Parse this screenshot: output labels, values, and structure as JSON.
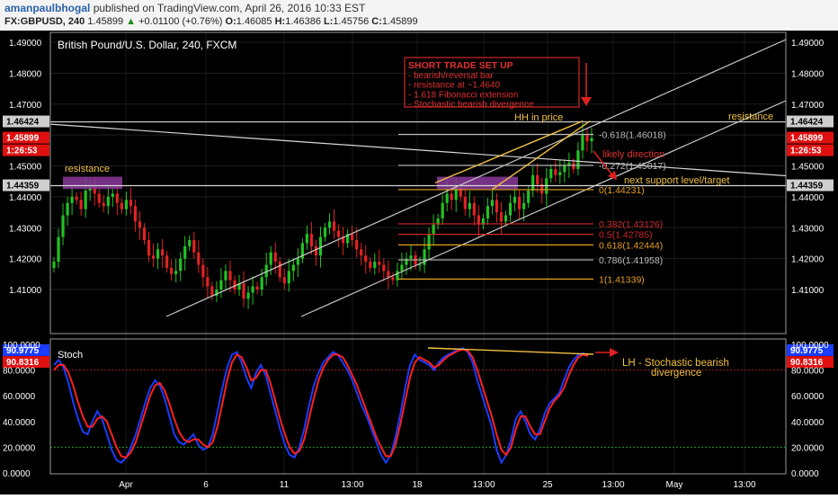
{
  "header": {
    "author": "amanpaulbhogal",
    "published_text": "published on TradingView.com, April 26, 2016 10:33 EST",
    "symbol": "FX:GBPUSD, 240",
    "last": "1.45899",
    "change_arrow": "▲",
    "change": "+0.01100 (+0.76%)",
    "o_label": "O:",
    "o": "1.46085",
    "h_label": "H:",
    "h": "1.46386",
    "l_label": "L:",
    "l": "1.45756",
    "c_label": "C:",
    "c": "1.45899"
  },
  "colors": {
    "background": "#000000",
    "panel_border": "#9a9a9a",
    "bull": "#22c322",
    "bear": "#e22222",
    "fib_gray": "#bbbbbb",
    "fib_red": "#d02828",
    "fib_orange": "#e8a020",
    "annotation_yellow": "#f0c040",
    "resistance_zone": "#8a3a9a",
    "stoch_k": "#1a3cff",
    "stoch_d": "#ff2020"
  },
  "chart_data": [
    {
      "type": "candlestick",
      "title": "British Pound/U.S. Dollar, 240, FXCM",
      "ylim": [
        1.4,
        1.4914
      ],
      "y_ticks": [
        "1.49000",
        "1.48000",
        "1.47000",
        "1.46000",
        "1.45000",
        "1.44000",
        "1.43000",
        "1.42000",
        "1.41000"
      ],
      "x_ticks": [
        "Apr",
        "6",
        "11",
        "13:00",
        "18",
        "13:00",
        "25",
        "13:00",
        "May",
        "13:00"
      ],
      "price_tags": [
        {
          "value": "1.46424",
          "style": "gray"
        },
        {
          "value": "1.45899",
          "style": "red"
        },
        {
          "value": "1:26:53",
          "style": "red"
        },
        {
          "value": "1.44359",
          "style": "gray"
        }
      ],
      "fibonacci_levels": [
        {
          "label": "-0.618(1.46018)",
          "value": 1.46018,
          "color": "gray"
        },
        {
          "label": "-0.272(1.45017)",
          "value": 1.45017,
          "color": "gray"
        },
        {
          "label": "0(1.44231)",
          "value": 1.44231,
          "color": "orange"
        },
        {
          "label": "0.382(1.43126)",
          "value": 1.43126,
          "color": "red"
        },
        {
          "label": "0.5(1.42785)",
          "value": 1.42785,
          "color": "red"
        },
        {
          "label": "0.618(1.42444)",
          "value": 1.42444,
          "color": "orange"
        },
        {
          "label": "0.786(1.41958)",
          "value": 1.41958,
          "color": "gray"
        },
        {
          "label": "1(1.41339)",
          "value": 1.41339,
          "color": "orange"
        }
      ],
      "horizontal_lines": [
        {
          "name": "resistance",
          "value": 1.46424
        },
        {
          "name": "support",
          "value": 1.44359
        }
      ],
      "annotations": {
        "short_setup_lines": [
          "SHORT TRADE SET UP",
          "- bearish/reversal bar",
          "- resistance at ~1.4640",
          "- 1.618 Fibonacci extension",
          "- Stochastic bearish divergence"
        ],
        "hh_in_price": "HH in price",
        "resistance_right": "resistance",
        "resistance_left": "resistance",
        "likely_direction": "likely direction",
        "next_support": "next support level/target"
      },
      "close_series": [
        1.419,
        1.427,
        1.434,
        1.438,
        1.44,
        1.439,
        1.436,
        1.442,
        1.443,
        1.441,
        1.438,
        1.437,
        1.44,
        1.441,
        1.438,
        1.436,
        1.439,
        1.437,
        1.432,
        1.43,
        1.426,
        1.421,
        1.42,
        1.423,
        1.421,
        1.417,
        1.415,
        1.416,
        1.42,
        1.424,
        1.426,
        1.422,
        1.418,
        1.414,
        1.411,
        1.408,
        1.41,
        1.413,
        1.416,
        1.413,
        1.41,
        1.412,
        1.407,
        1.409,
        1.411,
        1.41,
        1.414,
        1.418,
        1.422,
        1.419,
        1.414,
        1.412,
        1.416,
        1.418,
        1.42,
        1.425,
        1.428,
        1.424,
        1.421,
        1.427,
        1.43,
        1.432,
        1.429,
        1.427,
        1.425,
        1.428,
        1.426,
        1.423,
        1.421,
        1.419,
        1.417,
        1.419,
        1.418,
        1.416,
        1.414,
        1.413,
        1.416,
        1.418,
        1.42,
        1.421,
        1.418,
        1.418,
        1.423,
        1.428,
        1.431,
        1.433,
        1.438,
        1.441,
        1.439,
        1.443,
        1.44,
        1.436,
        1.438,
        1.434,
        1.431,
        1.433,
        1.437,
        1.439,
        1.435,
        1.432,
        1.434,
        1.438,
        1.44,
        1.436,
        1.438,
        1.442,
        1.447,
        1.444,
        1.441,
        1.446,
        1.449,
        1.447,
        1.448,
        1.45,
        1.451,
        1.449,
        1.455,
        1.46,
        1.458,
        1.459
      ]
    },
    {
      "type": "line",
      "title": "Stoch",
      "ylim": [
        0,
        100
      ],
      "y_ticks": [
        "100.0000",
        "80.0000",
        "60.0000",
        "40.0000",
        "20.0000",
        "0.0000"
      ],
      "reference_lines": [
        80,
        20
      ],
      "value_tags": [
        {
          "value": "90.9775",
          "series": "K"
        },
        {
          "value": "90.8316",
          "series": "D"
        }
      ],
      "divergence_label_lines": [
        "LH - Stochastic bearish",
        "divergence"
      ],
      "series": [
        {
          "name": "K",
          "color": "#1a3cff",
          "values": [
            84,
            88,
            82,
            70,
            55,
            42,
            32,
            30,
            40,
            48,
            42,
            30,
            18,
            10,
            8,
            12,
            20,
            30,
            42,
            55,
            66,
            72,
            68,
            58,
            44,
            30,
            24,
            22,
            26,
            30,
            22,
            18,
            20,
            30,
            48,
            66,
            82,
            92,
            94,
            86,
            74,
            66,
            78,
            84,
            76,
            62,
            48,
            34,
            22,
            14,
            12,
            20,
            34,
            52,
            68,
            78,
            86,
            90,
            94,
            92,
            86,
            80,
            72,
            62,
            52,
            44,
            34,
            24,
            14,
            8,
            14,
            28,
            46,
            66,
            84,
            92,
            88,
            86,
            84,
            80,
            86,
            90,
            92,
            94,
            96,
            97,
            94,
            86,
            72,
            60,
            48,
            36,
            18,
            8,
            14,
            26,
            42,
            48,
            40,
            30,
            26,
            34,
            46,
            54,
            58,
            62,
            72,
            82,
            88,
            92,
            93,
            91
          ]
        },
        {
          "name": "D",
          "color": "#ff2020",
          "values": [
            80,
            84,
            84,
            78,
            68,
            55,
            44,
            36,
            36,
            42,
            44,
            40,
            30,
            20,
            13,
            12,
            16,
            24,
            36,
            48,
            60,
            68,
            70,
            64,
            54,
            42,
            32,
            26,
            24,
            26,
            26,
            22,
            20,
            24,
            36,
            54,
            72,
            86,
            92,
            90,
            82,
            72,
            74,
            80,
            80,
            70,
            56,
            42,
            30,
            20,
            15,
            17,
            26,
            42,
            58,
            72,
            82,
            88,
            92,
            92,
            90,
            84,
            76,
            68,
            58,
            48,
            38,
            28,
            20,
            13,
            13,
            22,
            38,
            56,
            74,
            86,
            90,
            88,
            86,
            82,
            84,
            88,
            91,
            93,
            95,
            96,
            95,
            90,
            80,
            68,
            56,
            44,
            30,
            18,
            14,
            20,
            34,
            44,
            44,
            36,
            30,
            30,
            40,
            50,
            56,
            60,
            66,
            76,
            84,
            90,
            92,
            91
          ]
        }
      ]
    }
  ]
}
